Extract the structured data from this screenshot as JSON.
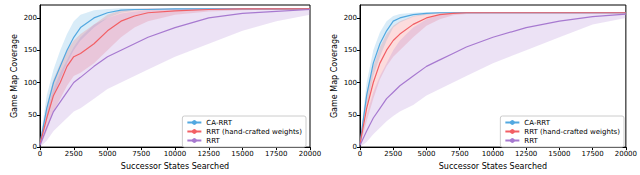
{
  "chart_data": [
    {
      "type": "line",
      "xlabel": "Successor States Searched",
      "ylabel": "Game Map Coverage",
      "x": [
        0,
        500,
        1000,
        1500,
        2000,
        2500,
        3000,
        4000,
        5000,
        6000,
        7000,
        8000,
        10000,
        12500,
        15000,
        17500,
        20000
      ],
      "xlim": [
        0,
        20000
      ],
      "xticks": [
        0,
        2500,
        5000,
        7500,
        10000,
        12500,
        15000,
        17500,
        20000
      ],
      "ylim": [
        0,
        220
      ],
      "yticks": [
        0,
        50,
        100,
        150,
        200
      ],
      "grid": false,
      "legend": "lower right",
      "series": [
        {
          "name": "CA-RRT",
          "color": "#52a8e0",
          "values": [
            5,
            60,
            100,
            125,
            150,
            170,
            185,
            200,
            208,
            212,
            213,
            213,
            214,
            214,
            214,
            214,
            214
          ],
          "lower": [
            0,
            40,
            80,
            105,
            130,
            150,
            165,
            185,
            200,
            208,
            211,
            212,
            213,
            213,
            213,
            213,
            213
          ],
          "upper": [
            10,
            80,
            120,
            150,
            175,
            195,
            205,
            212,
            214,
            215,
            215,
            215,
            215,
            215,
            215,
            215,
            215
          ]
        },
        {
          "name": "RRT (hand-crafted weights)",
          "color": "#f25f64",
          "values": [
            5,
            45,
            80,
            100,
            125,
            140,
            145,
            160,
            180,
            195,
            203,
            208,
            211,
            213,
            214,
            214,
            214
          ],
          "lower": [
            0,
            25,
            55,
            75,
            95,
            110,
            115,
            130,
            150,
            170,
            185,
            195,
            205,
            210,
            212,
            213,
            213
          ],
          "upper": [
            10,
            65,
            105,
            130,
            150,
            165,
            175,
            190,
            205,
            212,
            214,
            215,
            215,
            215,
            215,
            215,
            215
          ]
        },
        {
          "name": "RRT",
          "color": "#a779d0",
          "values": [
            3,
            30,
            55,
            70,
            85,
            100,
            108,
            125,
            140,
            150,
            160,
            170,
            185,
            200,
            207,
            210,
            213
          ],
          "lower": [
            0,
            10,
            25,
            35,
            45,
            55,
            60,
            75,
            90,
            100,
            110,
            120,
            140,
            160,
            180,
            195,
            205
          ],
          "upper": [
            8,
            55,
            90,
            115,
            135,
            155,
            170,
            190,
            200,
            207,
            210,
            212,
            214,
            215,
            215,
            215,
            215
          ]
        }
      ]
    },
    {
      "type": "line",
      "xlabel": "Successor States Searched",
      "ylabel": "Game Map Coverage",
      "x": [
        0,
        500,
        1000,
        1500,
        2000,
        2500,
        3000,
        4000,
        5000,
        6000,
        7000,
        8000,
        10000,
        12500,
        15000,
        17500,
        20000
      ],
      "xlim": [
        0,
        20000
      ],
      "xticks": [
        0,
        2500,
        5000,
        7500,
        10000,
        12500,
        15000,
        17500,
        20000
      ],
      "ylim": [
        0,
        220
      ],
      "yticks": [
        0,
        50,
        100,
        150,
        200
      ],
      "grid": false,
      "legend": "lower right",
      "series": [
        {
          "name": "CA-RRT",
          "color": "#52a8e0",
          "values": [
            5,
            80,
            130,
            160,
            180,
            195,
            200,
            205,
            207,
            208,
            208,
            208,
            208,
            208,
            208,
            208,
            208
          ],
          "lower": [
            0,
            60,
            110,
            140,
            165,
            185,
            193,
            202,
            205,
            207,
            207,
            207,
            207,
            207,
            207,
            207,
            207
          ],
          "upper": [
            10,
            100,
            150,
            178,
            195,
            203,
            206,
            208,
            209,
            209,
            209,
            209,
            209,
            209,
            209,
            209,
            209
          ]
        },
        {
          "name": "RRT (hand-crafted weights)",
          "color": "#f25f64",
          "values": [
            5,
            60,
            100,
            130,
            150,
            165,
            175,
            190,
            200,
            205,
            207,
            208,
            208,
            208,
            208,
            208,
            208
          ],
          "lower": [
            0,
            40,
            75,
            105,
            125,
            140,
            150,
            170,
            188,
            198,
            204,
            206,
            207,
            207,
            207,
            207,
            207
          ],
          "upper": [
            10,
            85,
            125,
            155,
            175,
            188,
            195,
            203,
            207,
            209,
            209,
            209,
            209,
            209,
            209,
            209,
            209
          ]
        },
        {
          "name": "RRT",
          "color": "#a779d0",
          "values": [
            3,
            25,
            45,
            60,
            75,
            85,
            95,
            110,
            125,
            135,
            145,
            155,
            170,
            185,
            195,
            202,
            206
          ],
          "lower": [
            0,
            8,
            20,
            30,
            40,
            48,
            55,
            65,
            80,
            90,
            100,
            110,
            130,
            150,
            170,
            190,
            200
          ],
          "upper": [
            8,
            50,
            85,
            110,
            130,
            150,
            165,
            185,
            198,
            205,
            208,
            209,
            209,
            209,
            209,
            209,
            209
          ]
        }
      ]
    }
  ]
}
